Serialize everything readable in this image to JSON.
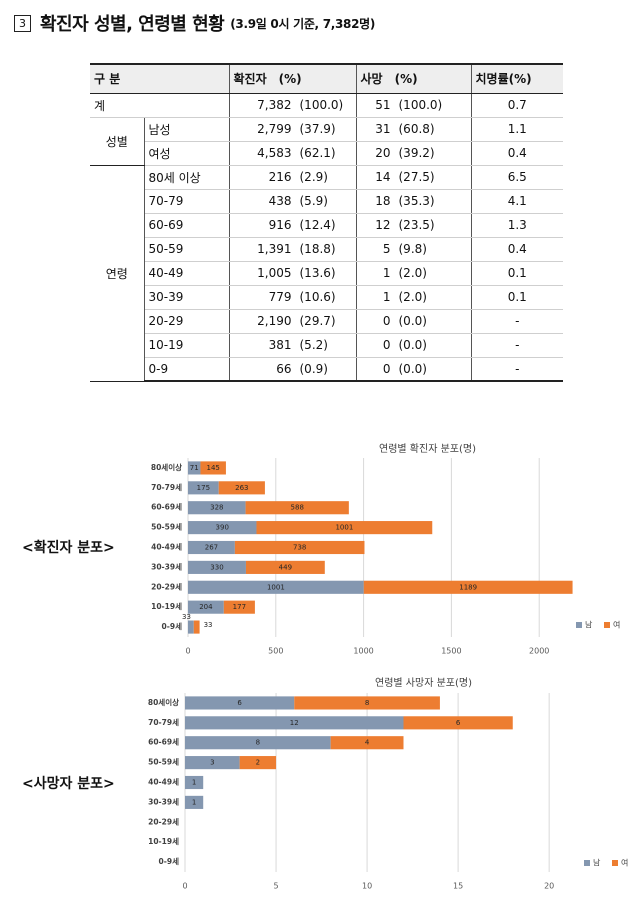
{
  "heading": {
    "number": "3",
    "title": "확진자 성별, 연령별 현황",
    "note": "(3.9일 0시 기준, 7,382명)"
  },
  "table": {
    "headers": {
      "category": "구 분",
      "confirmed": "확진자",
      "confirmed_pct": "(%)",
      "deaths": "사망",
      "deaths_pct": "(%)",
      "fatality": "치명률(%)"
    },
    "total": {
      "label": "계",
      "confirmed": "7,382",
      "confirmed_pct": "(100.0)",
      "deaths": "51",
      "deaths_pct": "(100.0)",
      "fatality": "0.7"
    },
    "sex_group": "성별",
    "sex_rows": [
      {
        "label": "남성",
        "confirmed": "2,799",
        "confirmed_pct": "(37.9)",
        "deaths": "31",
        "deaths_pct": "(60.8)",
        "fatality": "1.1"
      },
      {
        "label": "여성",
        "confirmed": "4,583",
        "confirmed_pct": "(62.1)",
        "deaths": "20",
        "deaths_pct": "(39.2)",
        "fatality": "0.4"
      }
    ],
    "age_group": "연령",
    "age_rows": [
      {
        "label": "80세 이상",
        "confirmed": "216",
        "confirmed_pct": "(2.9)",
        "deaths": "14",
        "deaths_pct": "(27.5)",
        "fatality": "6.5"
      },
      {
        "label": "70-79",
        "confirmed": "438",
        "confirmed_pct": "(5.9)",
        "deaths": "18",
        "deaths_pct": "(35.3)",
        "fatality": "4.1"
      },
      {
        "label": "60-69",
        "confirmed": "916",
        "confirmed_pct": "(12.4)",
        "deaths": "12",
        "deaths_pct": "(23.5)",
        "fatality": "1.3"
      },
      {
        "label": "50-59",
        "confirmed": "1,391",
        "confirmed_pct": "(18.8)",
        "deaths": "5",
        "deaths_pct": "(9.8)",
        "fatality": "0.4"
      },
      {
        "label": "40-49",
        "confirmed": "1,005",
        "confirmed_pct": "(13.6)",
        "deaths": "1",
        "deaths_pct": "(2.0)",
        "fatality": "0.1"
      },
      {
        "label": "30-39",
        "confirmed": "779",
        "confirmed_pct": "(10.6)",
        "deaths": "1",
        "deaths_pct": "(2.0)",
        "fatality": "0.1"
      },
      {
        "label": "20-29",
        "confirmed": "2,190",
        "confirmed_pct": "(29.7)",
        "deaths": "0",
        "deaths_pct": "(0.0)",
        "fatality": "-"
      },
      {
        "label": "10-19",
        "confirmed": "381",
        "confirmed_pct": "(5.2)",
        "deaths": "0",
        "deaths_pct": "(0.0)",
        "fatality": "-"
      },
      {
        "label": "0-9",
        "confirmed": "66",
        "confirmed_pct": "(0.9)",
        "deaths": "0",
        "deaths_pct": "(0.0)",
        "fatality": "-"
      }
    ]
  },
  "labels": {
    "confirmed_chart": "<확진자 분포>",
    "death_chart": "<사망자 분포>"
  },
  "colors": {
    "male": "#8497b0",
    "female": "#ed7d31",
    "grid": "#d9d9d9"
  },
  "chart_data": [
    {
      "type": "bar",
      "orientation": "horizontal",
      "stacked": true,
      "title": "연령별 확진자 분포(명)",
      "categories": [
        "80세이상",
        "70-79세",
        "60-69세",
        "50-59세",
        "40-49세",
        "30-39세",
        "20-29세",
        "10-19세",
        "0-9세"
      ],
      "series": [
        {
          "name": "남",
          "values": [
            71,
            175,
            328,
            390,
            267,
            330,
            1001,
            204,
            33
          ]
        },
        {
          "name": "여",
          "values": [
            145,
            263,
            588,
            1001,
            738,
            449,
            1189,
            177,
            33
          ]
        }
      ],
      "xlim": [
        0,
        2500
      ],
      "xticks": [
        0,
        500,
        1000,
        1500,
        2000
      ],
      "legend": "bottom-right",
      "grid": true
    },
    {
      "type": "bar",
      "orientation": "horizontal",
      "stacked": true,
      "title": "연령별 사망자 분포(명)",
      "categories": [
        "80세이상",
        "70-79세",
        "60-69세",
        "50-59세",
        "40-49세",
        "30-39세",
        "20-29세",
        "10-19세",
        "0-9세"
      ],
      "series": [
        {
          "name": "남",
          "values": [
            6,
            12,
            8,
            3,
            1,
            1,
            0,
            0,
            0
          ]
        },
        {
          "name": "여",
          "values": [
            8,
            6,
            4,
            2,
            0,
            0,
            0,
            0,
            0
          ]
        }
      ],
      "xlim": [
        0,
        24
      ],
      "xticks": [
        0,
        5,
        10,
        15,
        20
      ],
      "legend": "bottom-right",
      "grid": true
    }
  ]
}
